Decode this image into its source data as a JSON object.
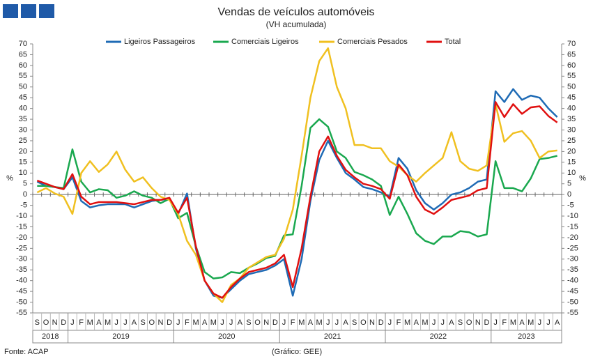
{
  "chart_data": {
    "type": "line",
    "title": "Vendas de veículos automóveis",
    "subtitle": "(VH acumulada)",
    "y_label": "%",
    "source": "Fonte: ACAP",
    "credit": "(Gráfico: GEE)",
    "categories": [
      "S",
      "O",
      "N",
      "D",
      "J",
      "F",
      "M",
      "A",
      "M",
      "J",
      "J",
      "A",
      "S",
      "O",
      "N",
      "D",
      "J",
      "F",
      "M",
      "A",
      "M",
      "J",
      "J",
      "A",
      "S",
      "O",
      "N",
      "D",
      "J",
      "F",
      "M",
      "A",
      "M",
      "J",
      "J",
      "A",
      "S",
      "O",
      "N",
      "D",
      "J",
      "F",
      "M",
      "A",
      "M",
      "J",
      "J",
      "A",
      "S",
      "O",
      "N",
      "D",
      "J",
      "F",
      "M",
      "A",
      "M",
      "J",
      "J",
      "A"
    ],
    "years": [
      {
        "label": "2018",
        "months": 4
      },
      {
        "label": "2019",
        "months": 12
      },
      {
        "label": "2020",
        "months": 12
      },
      {
        "label": "2021",
        "months": 12
      },
      {
        "label": "2022",
        "months": 12
      },
      {
        "label": "2023",
        "months": 8
      }
    ],
    "ylim": [
      -55,
      70
    ],
    "yticks": [
      -55,
      -50,
      -45,
      -40,
      -35,
      -30,
      -25,
      -20,
      -15,
      -10,
      -5,
      0,
      5,
      10,
      15,
      20,
      25,
      30,
      35,
      40,
      45,
      50,
      55,
      60,
      65,
      70
    ],
    "y2lim": [
      -55,
      70
    ],
    "y2ticks": [
      -55,
      -50,
      -45,
      -40,
      -35,
      -30,
      -25,
      -20,
      -15,
      -10,
      -5,
      0,
      5,
      10,
      15,
      20,
      25,
      30,
      35,
      40,
      45,
      50,
      55,
      60,
      65,
      70
    ],
    "grid": false,
    "legend": "top",
    "series": [
      {
        "name": "Ligeiros Passageiros",
        "color": "#1f6bb5",
        "values": [
          6,
          4,
          3.5,
          2.5,
          8,
          -3,
          -6,
          -5,
          -4.5,
          -4.5,
          -4.5,
          -6,
          -4.5,
          -3,
          -2.5,
          -2,
          -9,
          0.5,
          -25,
          -40,
          -47,
          -48,
          -44,
          -40,
          -37,
          -36,
          -35,
          -33,
          -30,
          -47,
          -30,
          -3,
          16,
          25,
          17,
          10,
          7,
          3.5,
          2.5,
          1,
          -1,
          17,
          12,
          2,
          -4,
          -7,
          -4,
          0,
          1,
          3,
          6,
          7,
          48,
          43,
          49,
          44,
          46,
          45,
          40,
          36
        ]
      },
      {
        "name": "Comerciais Ligeiros",
        "color": "#1aa84f",
        "values": [
          4,
          4,
          3.5,
          3,
          21,
          6,
          1,
          2.5,
          2,
          -1.5,
          -0.5,
          1.5,
          -0.5,
          -1.5,
          -4,
          -2,
          -11,
          -8.5,
          -24,
          -36,
          -39,
          -38.5,
          -36,
          -36.5,
          -34,
          -32,
          -29.5,
          -28.5,
          -19,
          -18.5,
          4,
          31,
          35,
          31.5,
          20,
          17,
          10.5,
          9,
          7,
          4,
          -9.5,
          -1,
          -9,
          -18,
          -21.5,
          -23,
          -19.5,
          -19.5,
          -17,
          -17.5,
          -19.5,
          -18.5,
          15.5,
          3,
          3,
          1.5,
          7.5,
          16.5,
          17,
          18
        ]
      },
      {
        "name": "Comerciais Pesados",
        "color": "#f0c020",
        "values": [
          1,
          3,
          0.5,
          -1,
          -9,
          10,
          15.5,
          10.5,
          14,
          20,
          11.5,
          6,
          8,
          3,
          -1,
          -2.5,
          -9,
          -21.5,
          -28,
          -40,
          -46,
          -50,
          -42,
          -39,
          -34,
          -31.5,
          -29,
          -28,
          -20.5,
          -7,
          18,
          45,
          62,
          68,
          50,
          40,
          23,
          23,
          21.5,
          21.5,
          15.5,
          13,
          9,
          6,
          10,
          13.5,
          17,
          29,
          15.5,
          12,
          11,
          13.5,
          42,
          24.5,
          28.5,
          29.5,
          25,
          17,
          20,
          20.5
        ]
      },
      {
        "name": "Total",
        "color": "#e01010",
        "values": [
          6.5,
          5,
          3.5,
          2.5,
          9.5,
          -1,
          -4.5,
          -3.5,
          -3.5,
          -3.5,
          -4,
          -4.5,
          -3.5,
          -2.5,
          -2.5,
          -1.5,
          -8.5,
          -1.5,
          -24,
          -40,
          -46,
          -48,
          -43,
          -39,
          -36,
          -35,
          -34,
          -32,
          -28,
          -43,
          -25,
          -1,
          20,
          27,
          18,
          11.5,
          8,
          5,
          4,
          2.5,
          -2,
          14,
          9,
          -1,
          -7,
          -9,
          -6,
          -2.5,
          -1.5,
          -0.5,
          2,
          3,
          43,
          36,
          42,
          37.5,
          40.5,
          41,
          36.5,
          33.5
        ]
      }
    ]
  }
}
